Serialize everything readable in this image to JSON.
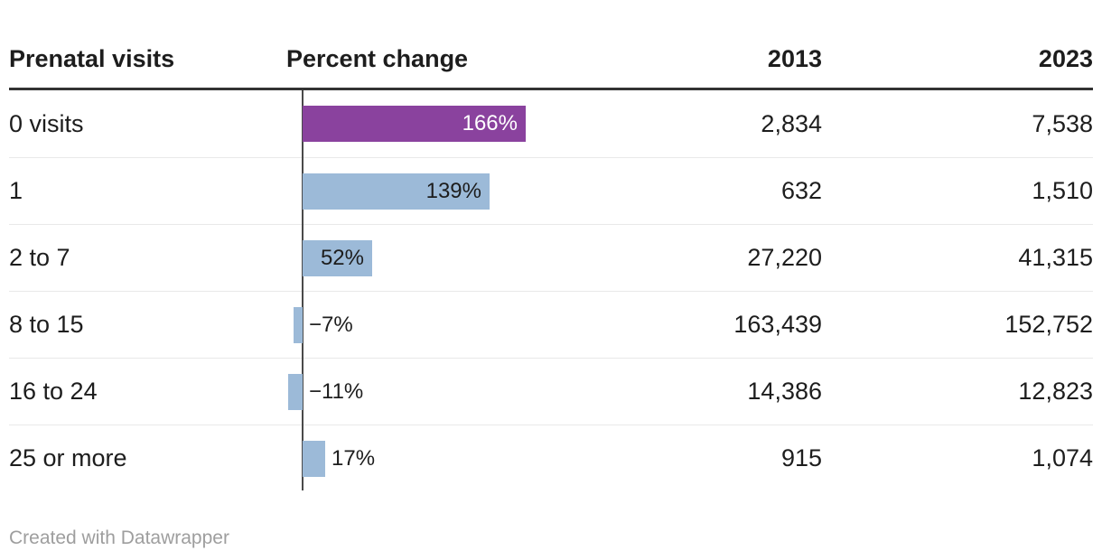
{
  "table": {
    "columns": {
      "category": "Prenatal visits",
      "change": "Percent change",
      "year1": "2013",
      "year2": "2023"
    },
    "rows": [
      {
        "label": "0 visits",
        "pct": 166,
        "pct_label": "166%",
        "y2013": "2,834",
        "y2023": "7,538",
        "highlight": true
      },
      {
        "label": "1",
        "pct": 139,
        "pct_label": "139%",
        "y2013": "632",
        "y2023": "1,510",
        "highlight": false
      },
      {
        "label": "2 to 7",
        "pct": 52,
        "pct_label": "52%",
        "y2013": "27,220",
        "y2023": "41,315",
        "highlight": false
      },
      {
        "label": "8 to 15",
        "pct": -7,
        "pct_label": "−7%",
        "y2013": "163,439",
        "y2023": "152,752",
        "highlight": false
      },
      {
        "label": "16 to 24",
        "pct": -11,
        "pct_label": "−11%",
        "y2013": "14,386",
        "y2023": "12,823",
        "highlight": false
      },
      {
        "label": "25 or more",
        "pct": 17,
        "pct_label": "17%",
        "y2013": "915",
        "y2023": "1,074",
        "highlight": false
      }
    ]
  },
  "chart_data": {
    "type": "bar",
    "orientation": "horizontal",
    "title": "",
    "categories": [
      "0 visits",
      "1",
      "2 to 7",
      "8 to 15",
      "16 to 24",
      "25 or more"
    ],
    "series": [
      {
        "name": "Percent change",
        "values": [
          166,
          139,
          52,
          -7,
          -11,
          17
        ],
        "unit": "%"
      },
      {
        "name": "2013",
        "values": [
          2834,
          632,
          27220,
          163439,
          14386,
          915
        ]
      },
      {
        "name": "2023",
        "values": [
          7538,
          1510,
          41315,
          152752,
          12823,
          1074
        ]
      }
    ],
    "xlabel": "",
    "ylabel": "Prenatal visits",
    "xlim": [
      -22,
      166
    ],
    "grid": false,
    "legend_position": "none",
    "bar_labels": [
      "166%",
      "139%",
      "52%",
      "−7%",
      "−11%",
      "17%"
    ],
    "highlighted_category": "0 visits"
  },
  "colors": {
    "bar_default": "#9cbad8",
    "bar_highlight": "#8a429e",
    "text": "#1d1d1d",
    "axis_line": "#4a4a4a",
    "header_rule": "#333333",
    "row_separator": "#e9e9e9",
    "footer_text": "#9e9e9e"
  },
  "footer": {
    "attribution": "Created with Datawrapper"
  }
}
